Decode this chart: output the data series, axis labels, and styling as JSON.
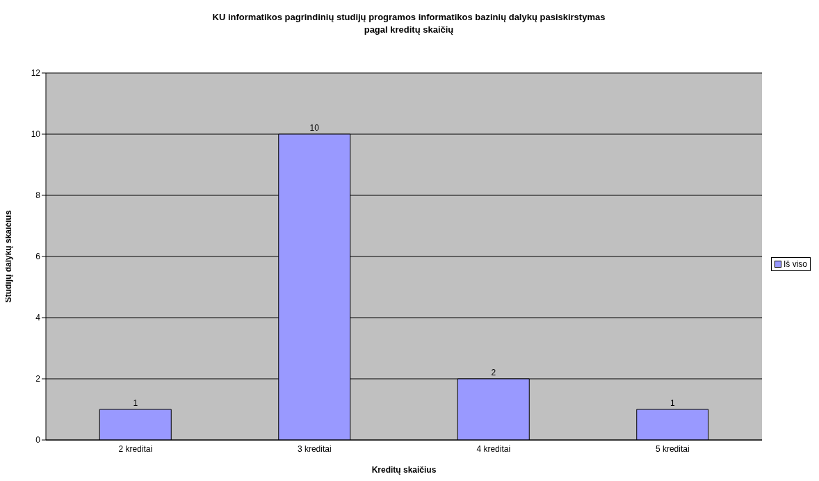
{
  "chart_data": {
    "type": "bar",
    "title": "KU informatikos pagrindinių studijų programos informatikos bazinių dalykų pasiskirstymas pagal kreditų skaičių",
    "xlabel": "Kreditų skaičius",
    "ylabel": "Studijų dalykų skaičius",
    "categories": [
      "2 kreditai",
      "3 kreditai",
      "4 kreditai",
      "5 kreditai"
    ],
    "series": [
      {
        "name": "Iš viso",
        "color": "#9999ff",
        "values": [
          1,
          10,
          2,
          1
        ]
      }
    ],
    "ylim": [
      0,
      12
    ],
    "yticks": [
      0,
      2,
      4,
      6,
      8,
      10,
      12
    ],
    "grid": "y",
    "legend": "right",
    "data_labels": true
  }
}
